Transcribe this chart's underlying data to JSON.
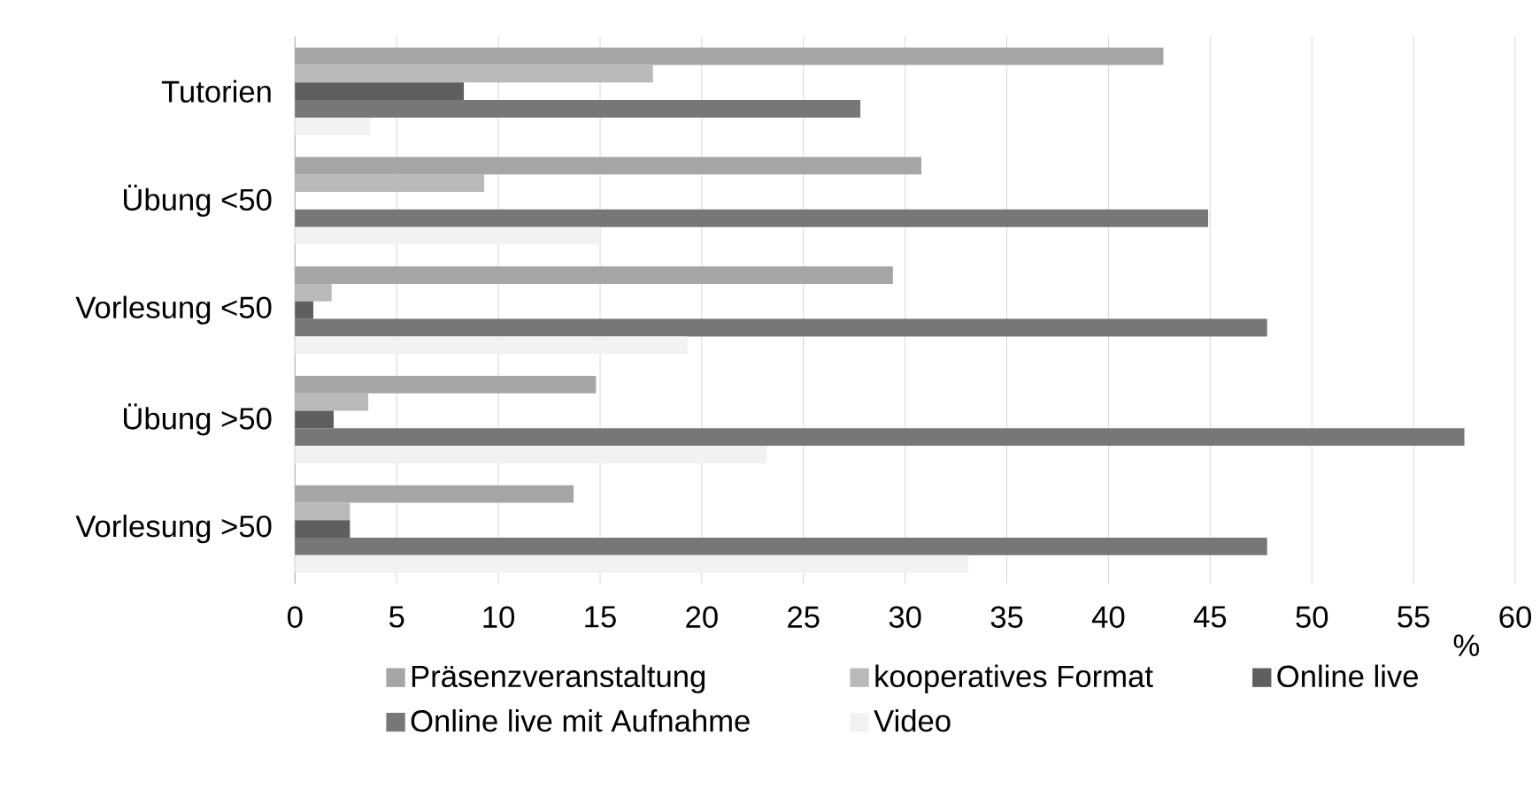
{
  "chart_data": {
    "type": "bar",
    "orientation": "horizontal",
    "xlabel": "%",
    "categories": [
      "Tutorien",
      "Übung <50",
      "Vorlesung <50",
      "Übung >50",
      "Vorlesung >50"
    ],
    "series": [
      {
        "name": "Präsenzveranstaltung",
        "color": "#a5a5a5",
        "values": [
          42.7,
          30.8,
          29.4,
          14.8,
          13.7
        ]
      },
      {
        "name": "kooperatives Format",
        "color": "#b9b9b9",
        "values": [
          17.6,
          9.3,
          1.8,
          3.6,
          2.7
        ]
      },
      {
        "name": "Online live",
        "color": "#5f5f5f",
        "values": [
          8.3,
          0,
          0.9,
          1.9,
          2.7
        ]
      },
      {
        "name": "Online live mit Aufnahme",
        "color": "#777777",
        "values": [
          27.8,
          44.9,
          47.8,
          57.5,
          47.8
        ]
      },
      {
        "name": "Video",
        "color": "#f2f2f2",
        "values": [
          3.7,
          15.0,
          19.3,
          23.2,
          33.1
        ]
      }
    ],
    "xlim": [
      0,
      60
    ],
    "xticks": [
      0,
      5,
      10,
      15,
      20,
      25,
      30,
      35,
      40,
      45,
      50,
      55,
      60
    ],
    "grid": "x",
    "legend": "bottom"
  }
}
